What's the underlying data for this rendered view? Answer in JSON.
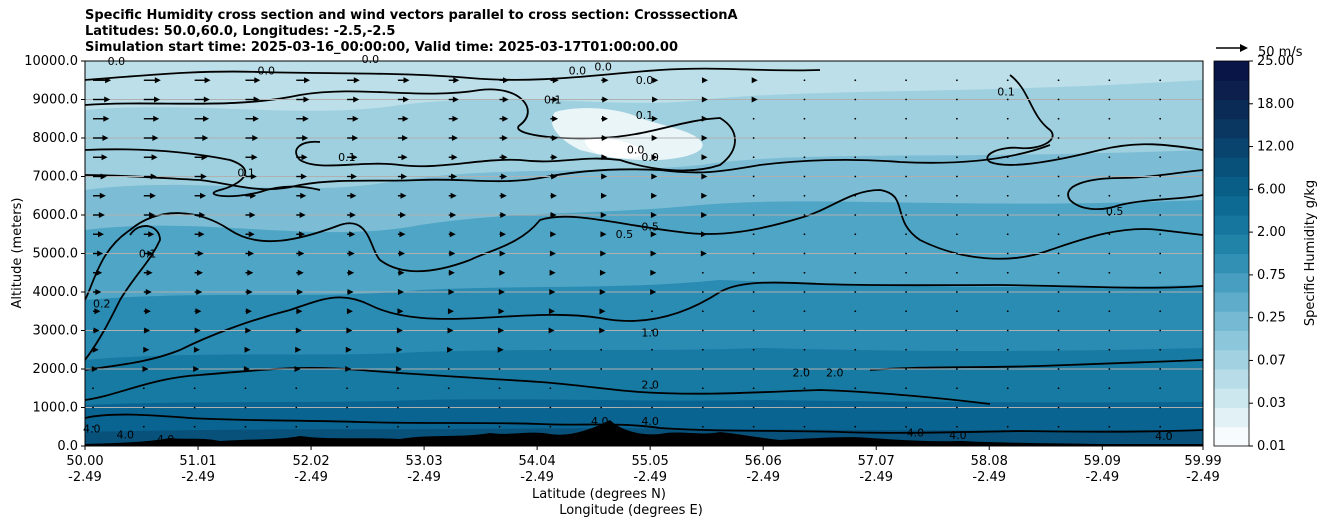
{
  "chart_data": {
    "type": "contour",
    "title_lines": [
      "Specific Humidity cross section and wind vectors parallel to cross section: CrosssectionA",
      "Latitudes: 50.0,60.0, Longitudes: -2.5,-2.5",
      "Simulation start time: 2025-03-16_00:00:00, Valid time: 2025-03-17T01:00:00.00"
    ],
    "ylabel": "Altitude (meters)",
    "xlabel_lines": [
      "Latitude (degrees N)",
      "Longitude (degrees E)"
    ],
    "ylim": [
      0,
      10000
    ],
    "xlim": [
      50.0,
      59.99
    ],
    "y_ticks": [
      "0.0",
      "1000.0",
      "2000.0",
      "3000.0",
      "4000.0",
      "5000.0",
      "6000.0",
      "7000.0",
      "8000.0",
      "9000.0",
      "10000.0"
    ],
    "y_tick_values": [
      0,
      1000,
      2000,
      3000,
      4000,
      5000,
      6000,
      7000,
      8000,
      9000,
      10000
    ],
    "x_ticks": [
      {
        "lat": "50.00",
        "lon": "-2.49",
        "value": 50.0
      },
      {
        "lat": "51.01",
        "lon": "-2.49",
        "value": 51.01
      },
      {
        "lat": "52.02",
        "lon": "-2.49",
        "value": 52.02
      },
      {
        "lat": "53.03",
        "lon": "-2.49",
        "value": 53.03
      },
      {
        "lat": "54.04",
        "lon": "-2.49",
        "value": 54.04
      },
      {
        "lat": "55.05",
        "lon": "-2.49",
        "value": 55.05
      },
      {
        "lat": "56.06",
        "lon": "-2.49",
        "value": 56.06
      },
      {
        "lat": "57.07",
        "lon": "-2.49",
        "value": 57.07
      },
      {
        "lat": "58.08",
        "lon": "-2.49",
        "value": 58.08
      },
      {
        "lat": "59.09",
        "lon": "-2.49",
        "value": 59.09
      },
      {
        "lat": "59.99",
        "lon": "-2.49",
        "value": 59.99
      }
    ],
    "grid": "horizontal",
    "colorbar": {
      "label": "Specific Humidity g/kg",
      "ticks": [
        "0.01",
        "0.03",
        "0.07",
        "0.25",
        "0.75",
        "2.00",
        "6.00",
        "12.00",
        "18.00",
        "25.00"
      ],
      "band_colors": [
        "#f7fbfd",
        "#e2f1f5",
        "#cde7ef",
        "#b8dde8",
        "#a2d2e1",
        "#8cc6da",
        "#75b9d2",
        "#5eacc9",
        "#479ec0",
        "#3290b5",
        "#2283a9",
        "#16769d",
        "#0d6a92",
        "#085e87",
        "#07517b",
        "#08446e",
        "#0a3762",
        "#0b2b57",
        "#0c1f4d",
        "#081546"
      ]
    },
    "vector_key": {
      "label": "50 m/s",
      "value": 50
    },
    "contour_labels": [
      {
        "text": "0.0",
        "lat": 50.28,
        "alt": 9900
      },
      {
        "text": "0.0",
        "lat": 51.62,
        "alt": 9650
      },
      {
        "text": "0.0",
        "lat": 52.55,
        "alt": 9950
      },
      {
        "text": "0.0",
        "lat": 54.4,
        "alt": 9650
      },
      {
        "text": "0.0",
        "lat": 54.63,
        "alt": 9750
      },
      {
        "text": "0.0",
        "lat": 55.0,
        "alt": 9400
      },
      {
        "text": "0.1",
        "lat": 54.18,
        "alt": 8900
      },
      {
        "text": "0.1",
        "lat": 55.0,
        "alt": 8500
      },
      {
        "text": "0.1",
        "lat": 52.34,
        "alt": 7400
      },
      {
        "text": "0.1",
        "lat": 51.44,
        "alt": 7000
      },
      {
        "text": "0.0",
        "lat": 54.92,
        "alt": 7600
      },
      {
        "text": "0.0",
        "lat": 55.05,
        "alt": 7400
      },
      {
        "text": "0.1",
        "lat": 58.23,
        "alt": 9100
      },
      {
        "text": "0.1",
        "lat": 50.56,
        "alt": 4900
      },
      {
        "text": "0.2",
        "lat": 50.15,
        "alt": 3600
      },
      {
        "text": "0.5",
        "lat": 54.82,
        "alt": 5400
      },
      {
        "text": "0.5",
        "lat": 55.05,
        "alt": 5600
      },
      {
        "text": "0.5",
        "lat": 59.2,
        "alt": 6000
      },
      {
        "text": "1.0",
        "lat": 55.05,
        "alt": 2850
      },
      {
        "text": "2.0",
        "lat": 56.4,
        "alt": 1800
      },
      {
        "text": "2.0",
        "lat": 56.7,
        "alt": 1800
      },
      {
        "text": "2.0",
        "lat": 55.05,
        "alt": 1500
      },
      {
        "text": "4.0",
        "lat": 55.05,
        "alt": 550
      },
      {
        "text": "4.0",
        "lat": 50.06,
        "alt": 350
      },
      {
        "text": "4.0",
        "lat": 50.36,
        "alt": 200
      },
      {
        "text": "4.0",
        "lat": 50.72,
        "alt": 80
      },
      {
        "text": "4.0",
        "lat": 54.6,
        "alt": 550
      },
      {
        "text": "4.0",
        "lat": 57.42,
        "alt": 250
      },
      {
        "text": "4.0",
        "lat": 57.8,
        "alt": 180
      },
      {
        "text": "4.0",
        "lat": 59.64,
        "alt": 150
      }
    ]
  }
}
